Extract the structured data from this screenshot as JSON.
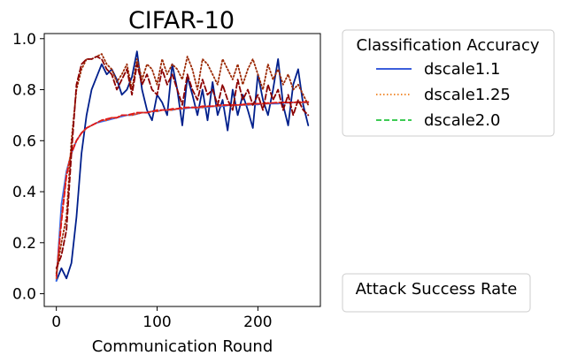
{
  "chart_data": {
    "type": "line",
    "title": "CIFAR-10",
    "xlabel": "Communication Round",
    "ylabel": "",
    "xlim": [
      -12,
      262
    ],
    "ylim": [
      -0.05,
      1.02
    ],
    "xticks": [
      0,
      100,
      200
    ],
    "xtick_labels": [
      "0",
      "100",
      "200"
    ],
    "yticks": [
      0.0,
      0.2,
      0.4,
      0.6,
      0.8,
      1.0
    ],
    "ytick_labels": [
      "0.0",
      "0.2",
      "0.4",
      "0.6",
      "0.8",
      "1.0"
    ],
    "grid": false,
    "legends": [
      {
        "title": "Classification Accuracy",
        "placement": "upper-right-outside",
        "entries": [
          {
            "label": "dscale1.1",
            "color": "#1f47d6",
            "dash": "solid"
          },
          {
            "label": "dscale1.25",
            "color": "#f07f1a",
            "dash": "dotted"
          },
          {
            "label": "dscale2.0",
            "color": "#22c43c",
            "dash": "dashed"
          }
        ]
      },
      {
        "title": "Attack Success Rate",
        "placement": "lower-right-outside",
        "entries": []
      }
    ],
    "x": [
      0,
      5,
      10,
      15,
      20,
      25,
      30,
      35,
      40,
      45,
      50,
      55,
      60,
      65,
      70,
      75,
      80,
      85,
      90,
      95,
      100,
      105,
      110,
      115,
      120,
      125,
      130,
      135,
      140,
      145,
      150,
      155,
      160,
      165,
      170,
      175,
      180,
      185,
      190,
      195,
      200,
      205,
      210,
      215,
      220,
      225,
      230,
      235,
      240,
      245,
      250
    ],
    "series": [
      {
        "color": "#001f8c",
        "dash": "solid",
        "values": [
          0.05,
          0.1,
          0.06,
          0.12,
          0.3,
          0.55,
          0.7,
          0.8,
          0.85,
          0.9,
          0.86,
          0.88,
          0.84,
          0.78,
          0.8,
          0.85,
          0.95,
          0.8,
          0.72,
          0.68,
          0.78,
          0.75,
          0.7,
          0.9,
          0.8,
          0.66,
          0.85,
          0.78,
          0.7,
          0.8,
          0.68,
          0.83,
          0.7,
          0.76,
          0.64,
          0.8,
          0.7,
          0.78,
          0.72,
          0.65,
          0.86,
          0.76,
          0.7,
          0.8,
          0.92,
          0.74,
          0.66,
          0.82,
          0.88,
          0.74,
          0.66
        ]
      },
      {
        "color": "#3a6ff0",
        "dash": "solid",
        "values": [
          0.05,
          0.35,
          0.48,
          0.55,
          0.6,
          0.63,
          0.65,
          0.66,
          0.67,
          0.675,
          0.68,
          0.685,
          0.69,
          0.695,
          0.7,
          0.7,
          0.705,
          0.71,
          0.71,
          0.715,
          0.715,
          0.72,
          0.72,
          0.72,
          0.725,
          0.725,
          0.728,
          0.73,
          0.73,
          0.73,
          0.732,
          0.735,
          0.735,
          0.735,
          0.738,
          0.74,
          0.74,
          0.74,
          0.74,
          0.742,
          0.742,
          0.745,
          0.745,
          0.745,
          0.745,
          0.748,
          0.748,
          0.75,
          0.75,
          0.75,
          0.75
        ]
      },
      {
        "color": "#e04a20",
        "dash": "dotted",
        "values": [
          0.06,
          0.3,
          0.47,
          0.56,
          0.6,
          0.63,
          0.65,
          0.66,
          0.67,
          0.68,
          0.68,
          0.69,
          0.69,
          0.7,
          0.7,
          0.7,
          0.705,
          0.71,
          0.71,
          0.715,
          0.715,
          0.72,
          0.72,
          0.72,
          0.725,
          0.725,
          0.73,
          0.73,
          0.73,
          0.73,
          0.735,
          0.735,
          0.735,
          0.738,
          0.74,
          0.74,
          0.74,
          0.74,
          0.742,
          0.742,
          0.745,
          0.745,
          0.745,
          0.748,
          0.748,
          0.75,
          0.75,
          0.75,
          0.75,
          0.75,
          0.752
        ]
      },
      {
        "color": "#e01818",
        "dash": "dashed",
        "values": [
          0.07,
          0.28,
          0.46,
          0.55,
          0.6,
          0.63,
          0.65,
          0.66,
          0.67,
          0.68,
          0.685,
          0.69,
          0.69,
          0.7,
          0.7,
          0.705,
          0.71,
          0.71,
          0.71,
          0.715,
          0.72,
          0.72,
          0.72,
          0.725,
          0.725,
          0.73,
          0.73,
          0.73,
          0.73,
          0.735,
          0.735,
          0.735,
          0.74,
          0.74,
          0.74,
          0.74,
          0.74,
          0.742,
          0.745,
          0.745,
          0.745,
          0.745,
          0.748,
          0.748,
          0.75,
          0.75,
          0.75,
          0.75,
          0.752,
          0.752,
          0.752
        ]
      },
      {
        "color": "#9c2a06",
        "dash": "dotted",
        "values": [
          0.08,
          0.2,
          0.3,
          0.6,
          0.8,
          0.88,
          0.92,
          0.92,
          0.93,
          0.94,
          0.9,
          0.88,
          0.83,
          0.86,
          0.9,
          0.8,
          0.92,
          0.84,
          0.9,
          0.88,
          0.82,
          0.92,
          0.86,
          0.9,
          0.88,
          0.84,
          0.93,
          0.88,
          0.8,
          0.92,
          0.9,
          0.86,
          0.82,
          0.92,
          0.88,
          0.84,
          0.9,
          0.82,
          0.88,
          0.92,
          0.86,
          0.8,
          0.9,
          0.84,
          0.88,
          0.82,
          0.86,
          0.8,
          0.82,
          0.78,
          0.74
        ]
      },
      {
        "color": "#8b0000",
        "dash": "dashed",
        "values": [
          0.1,
          0.15,
          0.25,
          0.55,
          0.82,
          0.9,
          0.92,
          0.92,
          0.93,
          0.92,
          0.88,
          0.86,
          0.8,
          0.84,
          0.88,
          0.78,
          0.9,
          0.82,
          0.86,
          0.8,
          0.78,
          0.88,
          0.82,
          0.86,
          0.8,
          0.74,
          0.86,
          0.8,
          0.76,
          0.84,
          0.78,
          0.8,
          0.74,
          0.82,
          0.76,
          0.72,
          0.84,
          0.76,
          0.8,
          0.74,
          0.78,
          0.72,
          0.82,
          0.76,
          0.8,
          0.72,
          0.78,
          0.7,
          0.76,
          0.72,
          0.7
        ]
      }
    ]
  }
}
